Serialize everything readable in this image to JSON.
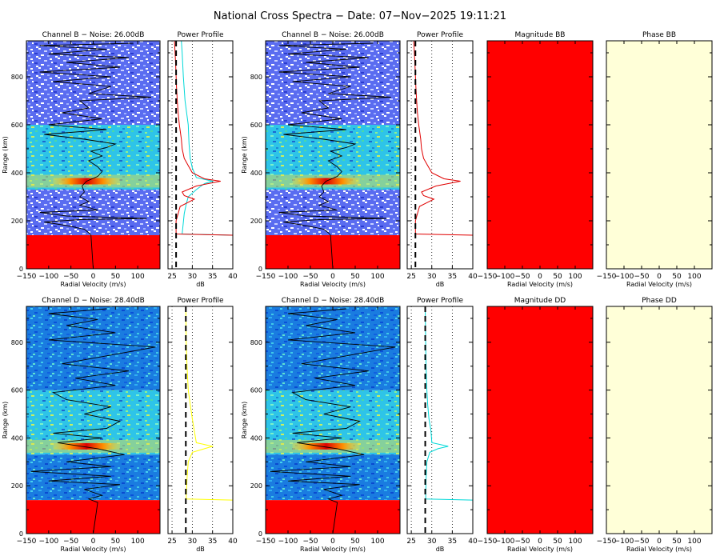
{
  "title": "National Cross Spectra − Date: 07−Nov−2025 19:11:21",
  "panel_titles": {
    "ch_b": "Channel B − Noise: 26.00dB",
    "ch_d": "Channel D − Noise: 28.40dB",
    "power": "Power Profile",
    "mag_bb": "Magnitude BB",
    "phase_bb": "Phase BB",
    "mag_dd": "Magnitude DD",
    "phase_dd": "Phase DD"
  },
  "axis_labels": {
    "range": "Range (km)",
    "radial_velocity": "Radial Velocity (m/s)",
    "db": "dB"
  },
  "colors": {
    "red_fill": "#ff0000",
    "phase_fill": "#ffffd8",
    "cyan": "#00d8d8",
    "yellow": "#ffff00",
    "red_line": "#e00000"
  },
  "chart_data": {
    "type": "heatmap",
    "description_units": {
      "x": "m/s",
      "y": "km",
      "power": "dB"
    },
    "spectra": {
      "x_ticks": [
        -150,
        -100,
        -50,
        0,
        50,
        100
      ],
      "y_ticks": [
        0,
        200,
        400,
        600,
        800
      ],
      "xlim": [
        -150,
        150
      ],
      "ylim": [
        0,
        950
      ],
      "red_block_top_km": 140,
      "strong_echo_km": 365,
      "noise_b_db": 26.0,
      "noise_d_db": 28.4,
      "peak_velocity_b": [
        [
          0,
          0
        ],
        [
          140,
          -5
        ],
        [
          150,
          -10
        ],
        [
          165,
          -20
        ],
        [
          180,
          -60
        ],
        [
          195,
          -110
        ],
        [
          205,
          -30
        ],
        [
          210,
          120
        ],
        [
          220,
          -60
        ],
        [
          235,
          -120
        ],
        [
          245,
          10
        ],
        [
          255,
          -10
        ],
        [
          265,
          -30
        ],
        [
          280,
          -10
        ],
        [
          300,
          -30
        ],
        [
          320,
          -20
        ],
        [
          345,
          -25
        ],
        [
          365,
          -15
        ],
        [
          385,
          10
        ],
        [
          405,
          20
        ],
        [
          425,
          10
        ],
        [
          450,
          -10
        ],
        [
          470,
          20
        ],
        [
          490,
          -5
        ],
        [
          505,
          30
        ],
        [
          520,
          50
        ],
        [
          540,
          -20
        ],
        [
          560,
          -110
        ],
        [
          580,
          30
        ],
        [
          600,
          -100
        ],
        [
          625,
          20
        ],
        [
          650,
          -70
        ],
        [
          670,
          -10
        ],
        [
          700,
          -30
        ],
        [
          715,
          130
        ],
        [
          730,
          -10
        ],
        [
          760,
          40
        ],
        [
          780,
          -90
        ],
        [
          800,
          40
        ],
        [
          820,
          -120
        ],
        [
          840,
          60
        ],
        [
          860,
          -60
        ],
        [
          880,
          80
        ],
        [
          895,
          -100
        ],
        [
          915,
          30
        ],
        [
          930,
          -120
        ],
        [
          940,
          90
        ]
      ],
      "peak_velocity_d": [
        [
          0,
          0
        ],
        [
          130,
          10
        ],
        [
          145,
          -10
        ],
        [
          160,
          20
        ],
        [
          185,
          -20
        ],
        [
          205,
          60
        ],
        [
          220,
          -100
        ],
        [
          240,
          40
        ],
        [
          260,
          -140
        ],
        [
          280,
          40
        ],
        [
          300,
          -60
        ],
        [
          330,
          70
        ],
        [
          355,
          10
        ],
        [
          380,
          -80
        ],
        [
          400,
          20
        ],
        [
          420,
          -90
        ],
        [
          440,
          30
        ],
        [
          470,
          60
        ],
        [
          500,
          -20
        ],
        [
          530,
          40
        ],
        [
          560,
          -60
        ],
        [
          590,
          -90
        ],
        [
          620,
          50
        ],
        [
          650,
          -40
        ],
        [
          680,
          80
        ],
        [
          710,
          -70
        ],
        [
          740,
          20
        ],
        [
          780,
          140
        ],
        [
          810,
          -100
        ],
        [
          840,
          50
        ],
        [
          870,
          -60
        ],
        [
          895,
          10
        ],
        [
          920,
          -100
        ],
        [
          940,
          30
        ]
      ],
      "power_profile_b_red": [
        [
          0,
          40
        ],
        [
          140,
          40
        ],
        [
          145,
          26
        ],
        [
          200,
          26
        ],
        [
          230,
          26.5
        ],
        [
          260,
          27
        ],
        [
          290,
          30.5
        ],
        [
          305,
          28
        ],
        [
          320,
          27.5
        ],
        [
          345,
          31
        ],
        [
          365,
          37
        ],
        [
          375,
          33
        ],
        [
          400,
          30
        ],
        [
          430,
          29
        ],
        [
          460,
          28
        ],
        [
          500,
          27.5
        ],
        [
          540,
          27.3
        ],
        [
          600,
          26.8
        ],
        [
          650,
          26.5
        ],
        [
          700,
          26.3
        ],
        [
          760,
          26.1
        ],
        [
          850,
          25.9
        ],
        [
          950,
          25.6
        ]
      ],
      "power_profile_b_cyan": [
        [
          0,
          40
        ],
        [
          140,
          40
        ],
        [
          145,
          27.5
        ],
        [
          230,
          28
        ],
        [
          270,
          28.5
        ],
        [
          300,
          29
        ],
        [
          330,
          31
        ],
        [
          355,
          33
        ],
        [
          365,
          35
        ],
        [
          380,
          31
        ],
        [
          420,
          30
        ],
        [
          460,
          29.5
        ],
        [
          520,
          29.2
        ],
        [
          600,
          29
        ],
        [
          700,
          28.2
        ],
        [
          800,
          27.8
        ],
        [
          900,
          27.5
        ],
        [
          950,
          27.3
        ]
      ],
      "power_profile_d_yellow": [
        [
          0,
          40
        ],
        [
          140,
          40
        ],
        [
          145,
          28.5
        ],
        [
          230,
          28.7
        ],
        [
          300,
          29
        ],
        [
          340,
          30
        ],
        [
          355,
          33
        ],
        [
          365,
          35
        ],
        [
          380,
          31
        ],
        [
          430,
          30.5
        ],
        [
          480,
          30
        ],
        [
          540,
          29.5
        ],
        [
          600,
          29
        ],
        [
          700,
          28.7
        ],
        [
          800,
          28.5
        ],
        [
          950,
          28.4
        ]
      ],
      "power_profile_d_cyan": [
        [
          0,
          40
        ],
        [
          140,
          40
        ],
        [
          145,
          28.5
        ],
        [
          230,
          28.6
        ],
        [
          300,
          28.8
        ],
        [
          340,
          29.5
        ],
        [
          355,
          31.5
        ],
        [
          365,
          34
        ],
        [
          380,
          30
        ],
        [
          430,
          29.8
        ],
        [
          480,
          29.3
        ],
        [
          540,
          29
        ],
        [
          600,
          28.8
        ],
        [
          700,
          28.6
        ],
        [
          800,
          28.5
        ],
        [
          950,
          28.4
        ]
      ],
      "db_ticks": [
        25,
        30,
        35,
        40
      ],
      "dblim": [
        24,
        40
      ]
    }
  }
}
